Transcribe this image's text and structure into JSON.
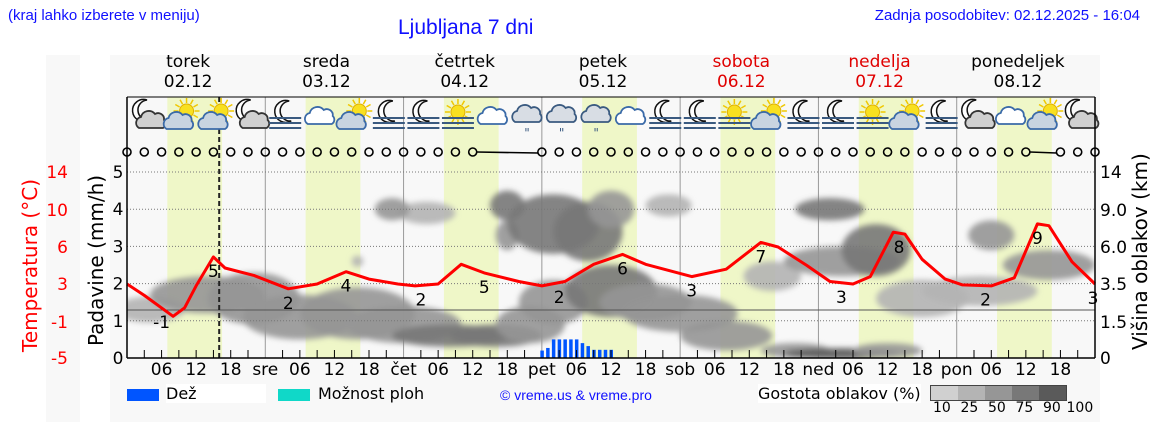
{
  "header": {
    "hint": "(kraj lahko izberete v meniju)",
    "title": "Ljubljana 7 dni",
    "updated": "Zadnja posodobitev: 02.12.2025 - 16:04"
  },
  "days": [
    {
      "name": "torek",
      "date": "02.12",
      "weekend": false,
      "abbr": ""
    },
    {
      "name": "sreda",
      "date": "03.12",
      "weekend": false,
      "abbr": "sre"
    },
    {
      "name": "četrtek",
      "date": "04.12",
      "weekend": false,
      "abbr": "čet"
    },
    {
      "name": "petek",
      "date": "05.12",
      "weekend": false,
      "abbr": "pet"
    },
    {
      "name": "sobota",
      "date": "06.12",
      "weekend": true,
      "abbr": "sob"
    },
    {
      "name": "nedelja",
      "date": "07.12",
      "weekend": true,
      "abbr": "ned"
    },
    {
      "name": "ponedeljek",
      "date": "08.12",
      "weekend": false,
      "abbr": "pon"
    }
  ],
  "colors": {
    "temperature": "#ff0000",
    "rain": "#0055ff",
    "shower": "#10d8c8",
    "daylight": "#eff7c8",
    "accent": "#1010ff"
  },
  "chart_data": {
    "type": "line",
    "x_unit": "hours since 02.12 00:00",
    "hour_ticks": [
      "06",
      "12",
      "18"
    ],
    "now_hour": 16,
    "daylight_hours": [
      7,
      16.5
    ],
    "axes": {
      "left_temp": {
        "label": "Temperatura (°C)",
        "ticks": [
          "14",
          "10",
          "6",
          "3",
          "-1",
          "-5"
        ]
      },
      "left_precip": {
        "label": "Padavine (mm/h)",
        "ticks": [
          "0",
          "1",
          "2",
          "3",
          "4",
          "5"
        ],
        "range": [
          0,
          5
        ]
      },
      "right_cloud": {
        "label": "Višina oblakov (km)",
        "ticks": [
          "0",
          "1.5",
          "3.5",
          "6.0",
          "9.0",
          "14"
        ]
      }
    },
    "temperature": [
      [
        0,
        3
      ],
      [
        3,
        1.8
      ],
      [
        8,
        -0.4
      ],
      [
        10,
        0.5
      ],
      [
        12,
        2.8
      ],
      [
        15,
        5.2
      ],
      [
        17,
        4.3
      ],
      [
        22,
        3.7
      ],
      [
        28,
        2.5
      ],
      [
        33,
        3
      ],
      [
        38,
        4
      ],
      [
        42,
        3.4
      ],
      [
        47,
        3
      ],
      [
        50,
        2.8
      ],
      [
        54,
        3
      ],
      [
        58,
        4.6
      ],
      [
        62,
        3.9
      ],
      [
        68,
        3.2
      ],
      [
        72,
        2.8
      ],
      [
        76,
        3.2
      ],
      [
        81,
        4.6
      ],
      [
        86,
        5.4
      ],
      [
        90,
        4.6
      ],
      [
        98,
        3.6
      ],
      [
        104,
        4.2
      ],
      [
        110,
        6.5
      ],
      [
        113,
        6
      ],
      [
        118,
        4.5
      ],
      [
        122,
        3.2
      ],
      [
        126,
        3
      ],
      [
        129,
        3.6
      ],
      [
        133,
        7.6
      ],
      [
        135,
        7.4
      ],
      [
        138,
        5
      ],
      [
        142,
        3.4
      ],
      [
        145,
        2.9
      ],
      [
        150,
        2.8
      ],
      [
        154,
        3.5
      ],
      [
        158,
        8.5
      ],
      [
        160,
        8.3
      ],
      [
        164,
        4.8
      ],
      [
        168,
        3
      ]
    ],
    "temp_labels": [
      {
        "hour": 6,
        "text": "-1",
        "pos": "below"
      },
      {
        "hour": 15,
        "text": "5",
        "pos": "below"
      },
      {
        "hour": 28,
        "text": "2",
        "pos": "below"
      },
      {
        "hour": 38,
        "text": "4",
        "pos": "below"
      },
      {
        "hour": 51,
        "text": "2",
        "pos": "below"
      },
      {
        "hour": 62,
        "text": "5",
        "pos": "below"
      },
      {
        "hour": 75,
        "text": "2",
        "pos": "below"
      },
      {
        "hour": 86,
        "text": "6",
        "pos": "below"
      },
      {
        "hour": 98,
        "text": "3",
        "pos": "below"
      },
      {
        "hour": 110,
        "text": "7",
        "pos": "below"
      },
      {
        "hour": 124,
        "text": "3",
        "pos": "below"
      },
      {
        "hour": 134,
        "text": "8",
        "pos": "below"
      },
      {
        "hour": 149,
        "text": "2",
        "pos": "below"
      },
      {
        "hour": 158,
        "text": "9",
        "pos": "below"
      },
      {
        "hour": 168,
        "text": "3",
        "pos": "below"
      }
    ],
    "rain_mm_h": [
      [
        72,
        0.2
      ],
      [
        73,
        0.27
      ],
      [
        74,
        0.5
      ],
      [
        75,
        0.5
      ],
      [
        76,
        0.5
      ],
      [
        77,
        0.5
      ],
      [
        78,
        0.5
      ],
      [
        79,
        0.4
      ],
      [
        80,
        0.32
      ],
      [
        81,
        0.22
      ],
      [
        82,
        0.22
      ],
      [
        83,
        0.22
      ],
      [
        84,
        0.22
      ]
    ],
    "clouds": [
      [
        4,
        1.3,
        6,
        0.35,
        40
      ],
      [
        14,
        1.7,
        10,
        0.5,
        50
      ],
      [
        22,
        1.6,
        8,
        0.7,
        60
      ],
      [
        30,
        1.1,
        10,
        0.6,
        70
      ],
      [
        40,
        1.2,
        10,
        0.7,
        70
      ],
      [
        48,
        0.9,
        10,
        0.5,
        70
      ],
      [
        56,
        0.6,
        10,
        0.3,
        75
      ],
      [
        64,
        0.6,
        8,
        0.3,
        75
      ],
      [
        70,
        0.9,
        6,
        0.5,
        60
      ],
      [
        74,
        1.5,
        6,
        0.6,
        70
      ],
      [
        66,
        4.1,
        3,
        0.4,
        80
      ],
      [
        66,
        3.3,
        2,
        0.4,
        70
      ],
      [
        74,
        3.6,
        8,
        0.8,
        85
      ],
      [
        80,
        3.4,
        6,
        0.8,
        80
      ],
      [
        84,
        4,
        4,
        0.5,
        70
      ],
      [
        84,
        1.8,
        8,
        0.7,
        75
      ],
      [
        90,
        1.5,
        8,
        0.5,
        60
      ],
      [
        96,
        1.2,
        10,
        0.5,
        60
      ],
      [
        104,
        0.6,
        8,
        0.4,
        60
      ],
      [
        112,
        2.2,
        5,
        0.4,
        40
      ],
      [
        116,
        0.2,
        6,
        0.2,
        60
      ],
      [
        124,
        0.12,
        10,
        0.15,
        90
      ],
      [
        124,
        2.6,
        10,
        0.4,
        60
      ],
      [
        122,
        4.0,
        6,
        0.3,
        80
      ],
      [
        130,
        2.9,
        6,
        0.7,
        80
      ],
      [
        132,
        0.2,
        6,
        0.2,
        60
      ],
      [
        138,
        1.6,
        8,
        0.5,
        40
      ],
      [
        148,
        1.8,
        10,
        0.4,
        40
      ],
      [
        150,
        3.3,
        4,
        0.4,
        70
      ],
      [
        160,
        2.5,
        8,
        0.4,
        50
      ],
      [
        52,
        3.9,
        5,
        0.3,
        40
      ],
      [
        46,
        4.0,
        3,
        0.3,
        50
      ],
      [
        94,
        4.1,
        4,
        0.3,
        40
      ],
      [
        40,
        2.6,
        1,
        0.15,
        30
      ]
    ],
    "icons": [
      "moon-cloud",
      "sun-cloud",
      "sun-cloud",
      "moon-cloud",
      "moon-fog",
      "cloud",
      "sun-cloud",
      "moon-fog",
      "moon-fog",
      "sun-fog",
      "cloud",
      "cloud-drizzle",
      "cloud-drizzle",
      "cloud-drizzle",
      "cloud",
      "moon-fog",
      "moon-fog",
      "sun-fog",
      "sun-cloud",
      "moon-fog",
      "moon-fog",
      "sun-fog",
      "sun-cloud",
      "moon-fog",
      "moon-cloud",
      "cloud",
      "sun-cloud",
      "moon-cloud"
    ],
    "wind_barb_hours": [
      [
        60,
        72
      ],
      [
        156,
        162
      ]
    ]
  },
  "legend": {
    "rain": "Dež",
    "shower": "Možnost ploh",
    "credit": "© vreme.us & vreme.pro",
    "cloud_density_title": "Gostota oblakov (%)",
    "cloud_density_levels": [
      "10",
      "25",
      "50",
      "75",
      "90",
      "100"
    ],
    "cloud_density_colors": [
      "#d0d0d0",
      "#b4b4b4",
      "#969696",
      "#787878",
      "#5a5a5a"
    ]
  }
}
